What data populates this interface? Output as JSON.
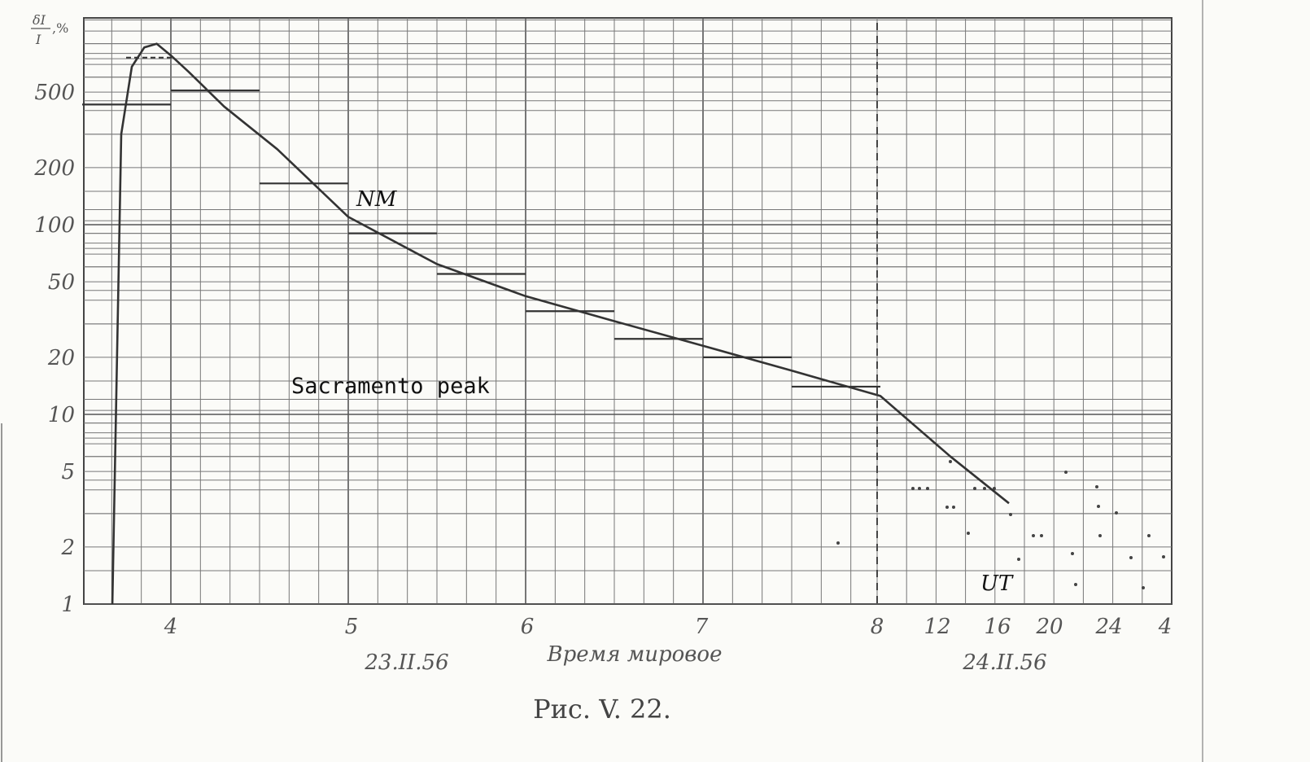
{
  "chart_data": {
    "type": "line",
    "ylabel": "δI/I,%",
    "xlabel": "Время мировое",
    "yscale": "log",
    "ylim": [
      1,
      1000
    ],
    "ytick_labels": [
      "1",
      "2",
      "5",
      "10",
      "20",
      "50",
      "100",
      "200",
      "500"
    ],
    "ytick_values": [
      1,
      2,
      5,
      10,
      20,
      50,
      100,
      200,
      500
    ],
    "xtick_labels": [
      "4",
      "5",
      "6",
      "7",
      "8",
      "12",
      "16",
      "20",
      "24",
      "4"
    ],
    "date_labels": [
      "23.II.56",
      "24.II.56"
    ],
    "annotations": {
      "station": "Sacramento peak",
      "detector": "NM",
      "time_unit": "UT"
    },
    "grid": true,
    "series": [
      {
        "name": "NM",
        "x_hours_ut": [
          3.67,
          3.72,
          3.78,
          3.85,
          3.92,
          4.0,
          4.1,
          4.3,
          4.6,
          5.0,
          5.5,
          6.0,
          6.5,
          7.0,
          7.5,
          8.0,
          8.5,
          8.9
        ],
        "values": [
          1.0,
          300,
          680,
          860,
          900,
          780,
          640,
          420,
          250,
          110,
          62,
          42,
          31,
          23,
          17,
          12.5,
          6.0,
          3.4
        ]
      }
    ],
    "steps": [
      {
        "x0": 3.5,
        "x1": 4.0,
        "value": 430
      },
      {
        "x0": 4.0,
        "x1": 4.5,
        "value": 510
      },
      {
        "x0": 4.5,
        "x1": 5.0,
        "value": 165
      },
      {
        "x0": 5.0,
        "x1": 5.5,
        "value": 90
      },
      {
        "x0": 5.5,
        "x1": 6.0,
        "value": 55
      },
      {
        "x0": 6.0,
        "x1": 6.5,
        "value": 35
      },
      {
        "x0": 6.5,
        "x1": 7.0,
        "value": 25
      },
      {
        "x0": 7.0,
        "x1": 7.5,
        "value": 20
      },
      {
        "x0": 7.5,
        "x1": 8.0,
        "value": 14
      }
    ]
  },
  "figure": {
    "caption": "Рис. V. 22."
  }
}
